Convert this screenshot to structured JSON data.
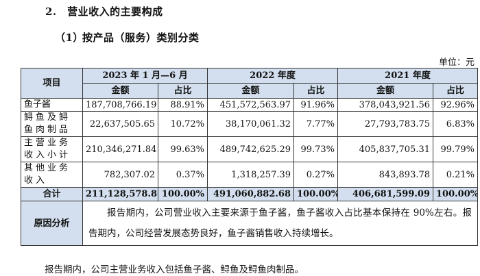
{
  "heading_section": "2.　营业收入的主要构成",
  "heading_sub_num": "（1）",
  "heading_sub_title": "按产品（服务）类别分类",
  "unit_label": "单位：元",
  "table": {
    "col_item": "项目",
    "periods": [
      "2023 年 1 月—6 月",
      "2022 年度",
      "2021 年度"
    ],
    "sub_amount": "金额",
    "sub_ratio": "占比",
    "rows": [
      {
        "label": "鱼子酱",
        "values": [
          "187,708,766.19",
          "88.91%",
          "451,572,563.97",
          "91.96%",
          "378,043,921.56",
          "92.96%"
        ]
      },
      {
        "label": "鲟鱼及鲟鱼肉制品",
        "values": [
          "22,637,505.65",
          "10.72%",
          "38,170,061.32",
          "7.77%",
          "27,793,783.75",
          "6.83%"
        ]
      },
      {
        "label": "主营业务收入小计",
        "values": [
          "210,346,271.84",
          "99.63%",
          "489,742,625.29",
          "99.73%",
          "405,837,705.31",
          "99.79%"
        ]
      },
      {
        "label": "其他业务收入",
        "values": [
          "782,307.02",
          "0.37%",
          "1,318,257.39",
          "0.27%",
          "843,893.78",
          "0.21%"
        ]
      }
    ],
    "total": {
      "label": "合计",
      "values": [
        "211,128,578.86",
        "100.00%",
        "491,060,882.68",
        "100.00%",
        "406,681,599.09",
        "100.00%"
      ]
    },
    "reason_label": "原因分析",
    "reason_text": "报告期内，公司营业收入主要来源于鱼子酱，鱼子酱收入占比基本保持在 90%左右。报告期内，公司经营发展态势良好，鱼子酱销售收入持续增长。"
  },
  "footer_text": "报告期内，公司主营业务收入包括鱼子酱、鲟鱼及鲟鱼肉制品。"
}
